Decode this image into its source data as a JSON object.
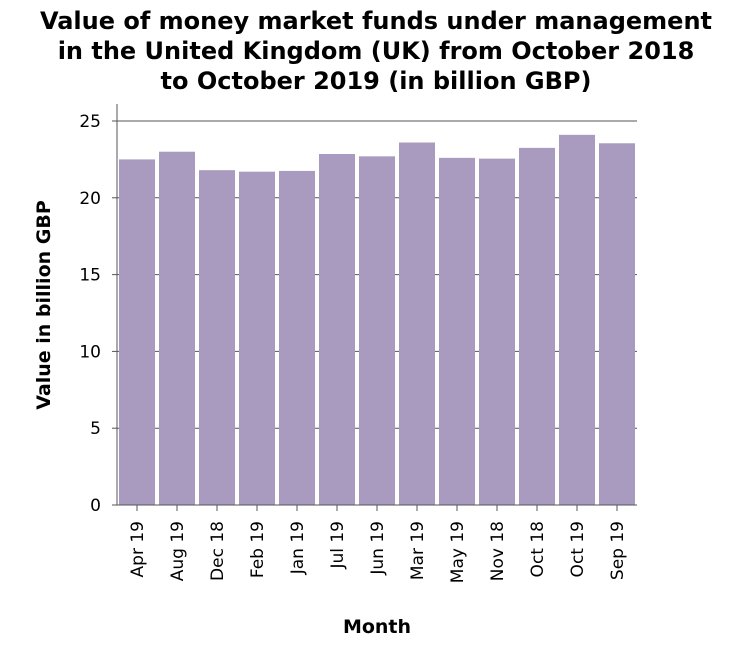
{
  "chart_data": {
    "type": "bar",
    "title_lines": [
      "Value of money market funds under management",
      "in the United Kingdom (UK) from October 2018",
      "to October 2019 (in billion GBP)"
    ],
    "xlabel": "Month",
    "ylabel": "Value in billion GBP",
    "categories": [
      "Apr 19",
      "Aug 19",
      "Dec 18",
      "Feb 19",
      "Jan 19",
      "Jul 19",
      "Jun 19",
      "Mar 19",
      "May 19",
      "Nov 18",
      "Oct 18",
      "Oct 19",
      "Sep 19"
    ],
    "values": [
      22.5,
      23.0,
      21.8,
      21.7,
      21.75,
      22.85,
      22.7,
      23.6,
      22.6,
      22.55,
      23.25,
      24.1,
      23.55
    ],
    "ylim": [
      0,
      25
    ],
    "yticks": [
      0,
      5,
      10,
      15,
      20,
      25
    ],
    "grid": true,
    "colors": {
      "bar": "#a99bbf",
      "grid": "#555555",
      "axis": "#555555"
    }
  }
}
